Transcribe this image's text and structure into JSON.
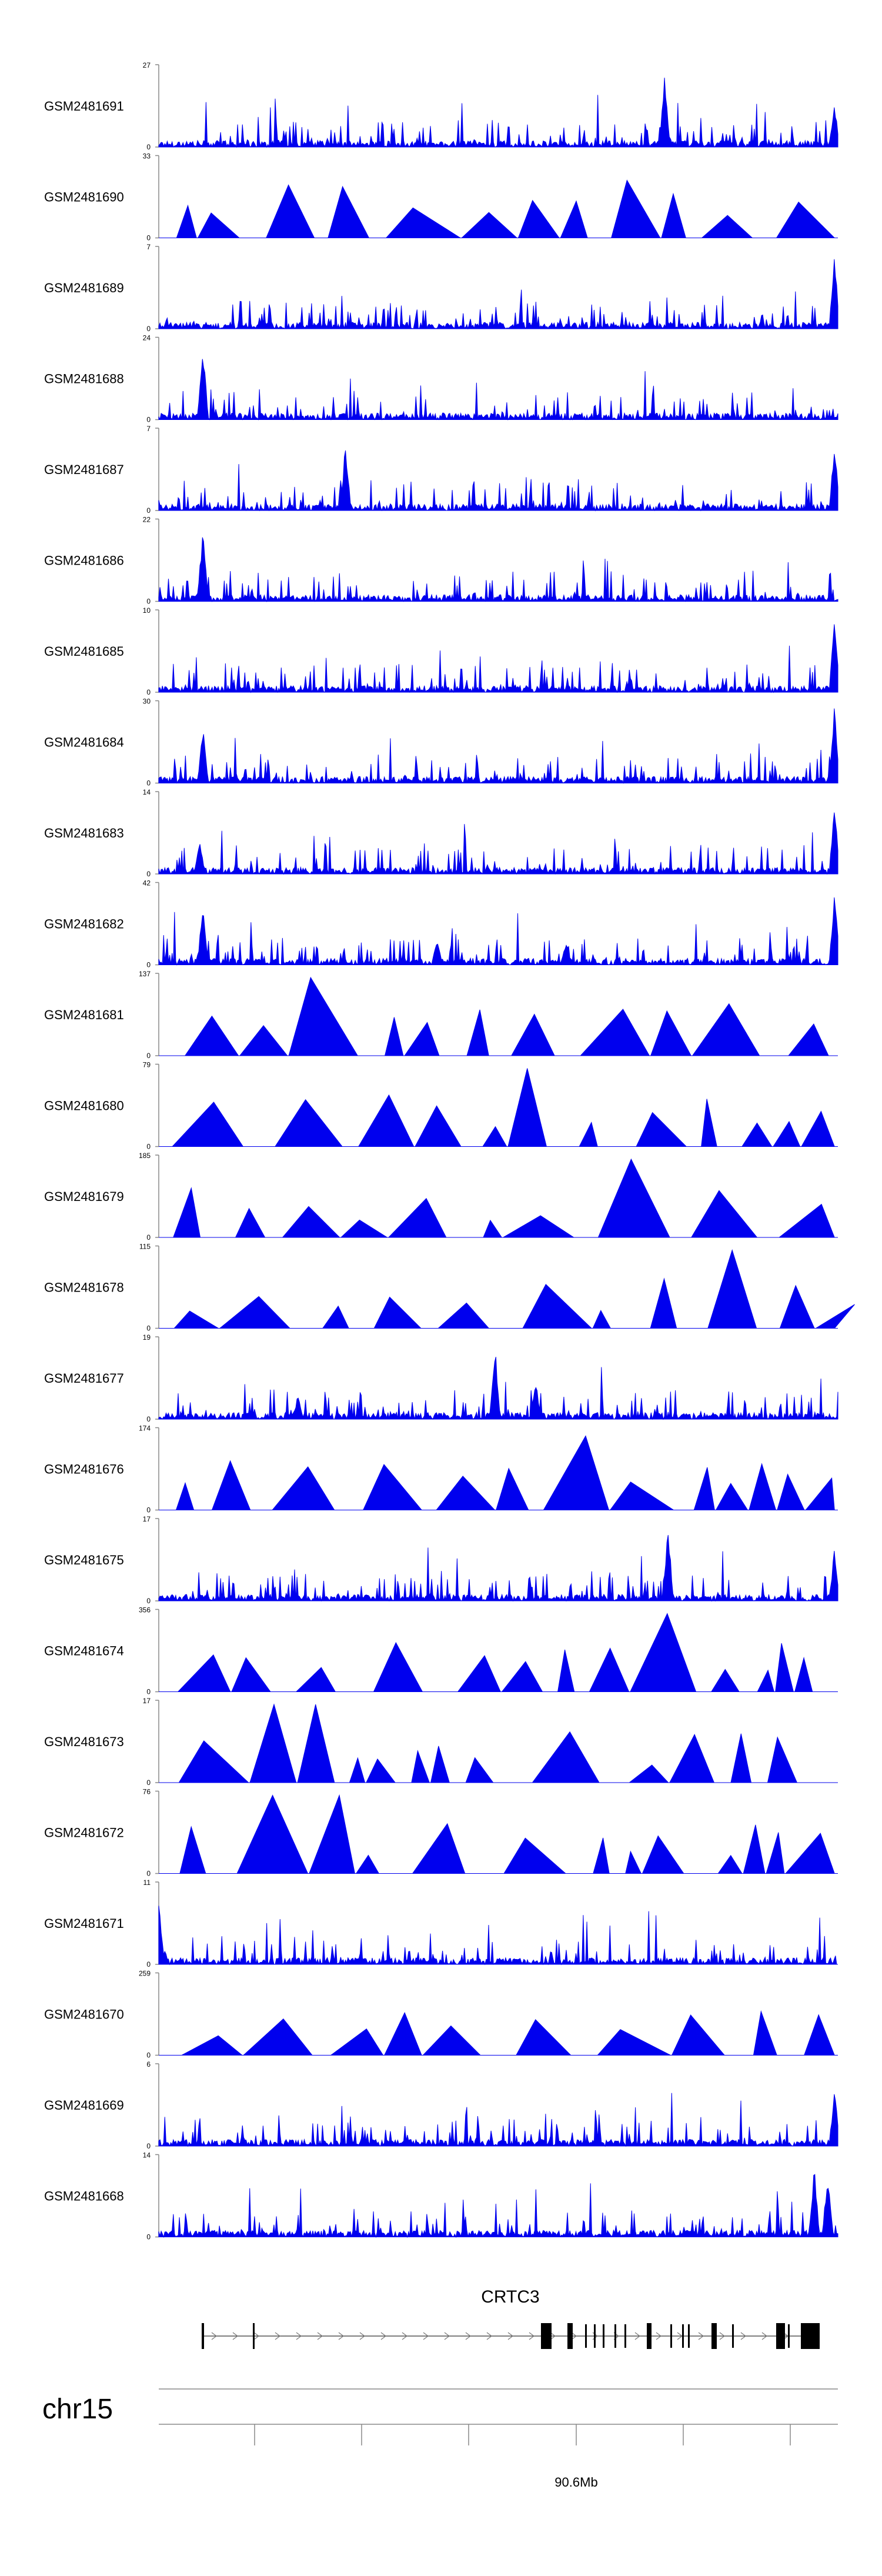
{
  "chart_data": {
    "type": "area",
    "title": "",
    "chromosome": "chr15",
    "gene": "CRTC3",
    "axis_tick_label": "90.6Mb",
    "colors": {
      "track": "#0000ee",
      "axis": "#888888",
      "text": "#000000",
      "gene": "#000000"
    },
    "tracks": [
      {
        "name": "GSM2481691",
        "ymax": "27",
        "ymin": "0",
        "style": "dense",
        "peaks": [
          [
            0.745,
            0.95
          ],
          [
            0.995,
            0.55
          ]
        ]
      },
      {
        "name": "GSM2481690",
        "ymax": "33",
        "ymin": "0",
        "style": "triangles",
        "peaks": [
          [
            0.69,
            0.7
          ]
        ]
      },
      {
        "name": "GSM2481689",
        "ymax": "7",
        "ymin": "0",
        "style": "dense",
        "peaks": [
          [
            0.995,
            0.9
          ]
        ]
      },
      {
        "name": "GSM2481688",
        "ymax": "24",
        "ymin": "0",
        "style": "dense",
        "peaks": [
          [
            0.065,
            0.95
          ]
        ]
      },
      {
        "name": "GSM2481687",
        "ymax": "7",
        "ymin": "0",
        "style": "dense",
        "peaks": [
          [
            0.275,
            0.85
          ],
          [
            0.995,
            0.85
          ]
        ]
      },
      {
        "name": "GSM2481686",
        "ymax": "22",
        "ymin": "0",
        "style": "dense",
        "peaks": [
          [
            0.065,
            0.95
          ]
        ]
      },
      {
        "name": "GSM2481685",
        "ymax": "10",
        "ymin": "0",
        "style": "dense",
        "peaks": [
          [
            0.995,
            0.9
          ]
        ]
      },
      {
        "name": "GSM2481684",
        "ymax": "30",
        "ymin": "0",
        "style": "dense",
        "peaks": [
          [
            0.065,
            0.7
          ],
          [
            0.995,
            0.95
          ]
        ]
      },
      {
        "name": "GSM2481683",
        "ymax": "14",
        "ymin": "0",
        "style": "dense",
        "peaks": [
          [
            0.06,
            0.45
          ],
          [
            0.995,
            0.95
          ]
        ]
      },
      {
        "name": "GSM2481682",
        "ymax": "42",
        "ymin": "0",
        "style": "dense",
        "peaks": [
          [
            0.065,
            0.8
          ],
          [
            0.41,
            0.35
          ],
          [
            0.6,
            0.3
          ],
          [
            0.995,
            0.95
          ]
        ]
      },
      {
        "name": "GSM2481681",
        "ymax": "137",
        "ymin": "0",
        "style": "triangles",
        "peaks": [
          [
            0.28,
            0.95
          ]
        ]
      },
      {
        "name": "GSM2481680",
        "ymax": "79",
        "ymin": "0",
        "style": "triangles",
        "peaks": [
          [
            0.575,
            0.95
          ]
        ]
      },
      {
        "name": "GSM2481679",
        "ymax": "185",
        "ymin": "0",
        "style": "triangles",
        "peaks": [
          [
            0.655,
            0.95
          ]
        ]
      },
      {
        "name": "GSM2481678",
        "ymax": "115",
        "ymin": "0",
        "style": "triangles",
        "peaks": [
          [
            0.82,
            0.95
          ]
        ]
      },
      {
        "name": "GSM2481677",
        "ymax": "19",
        "ymin": "0",
        "style": "dense",
        "peaks": [
          [
            0.495,
            0.95
          ],
          [
            0.555,
            0.5
          ],
          [
            0.205,
            0.3
          ]
        ]
      },
      {
        "name": "GSM2481676",
        "ymax": "174",
        "ymin": "0",
        "style": "triangles",
        "peaks": [
          [
            0.64,
            0.9
          ]
        ]
      },
      {
        "name": "GSM2481675",
        "ymax": "17",
        "ymin": "0",
        "style": "dense",
        "peaks": [
          [
            0.75,
            0.95
          ],
          [
            0.995,
            0.65
          ]
        ]
      },
      {
        "name": "GSM2481674",
        "ymax": "356",
        "ymin": "0",
        "style": "triangles",
        "peaks": [
          [
            0.745,
            0.95
          ]
        ]
      },
      {
        "name": "GSM2481673",
        "ymax": "17",
        "ymin": "0",
        "style": "triangles",
        "peaks": [
          [
            0.205,
            0.95
          ]
        ]
      },
      {
        "name": "GSM2481672",
        "ymax": "76",
        "ymin": "0",
        "style": "triangles",
        "peaks": [
          [
            0.225,
            0.95
          ]
        ]
      },
      {
        "name": "GSM2481671",
        "ymax": "11",
        "ymin": "0",
        "style": "dense",
        "peaks": [
          [
            0.0,
            0.8
          ]
        ]
      },
      {
        "name": "GSM2481670",
        "ymax": "259",
        "ymin": "0",
        "style": "triangles",
        "peaks": [
          [
            0.51,
            0.95
          ]
        ]
      },
      {
        "name": "GSM2481669",
        "ymax": "6",
        "ymin": "0",
        "style": "dense",
        "peaks": [
          [
            0.995,
            0.75
          ]
        ]
      },
      {
        "name": "GSM2481668",
        "ymax": "14",
        "ymin": "0",
        "style": "dense",
        "peaks": [
          [
            0.965,
            0.9
          ],
          [
            0.985,
            0.85
          ]
        ]
      }
    ]
  }
}
